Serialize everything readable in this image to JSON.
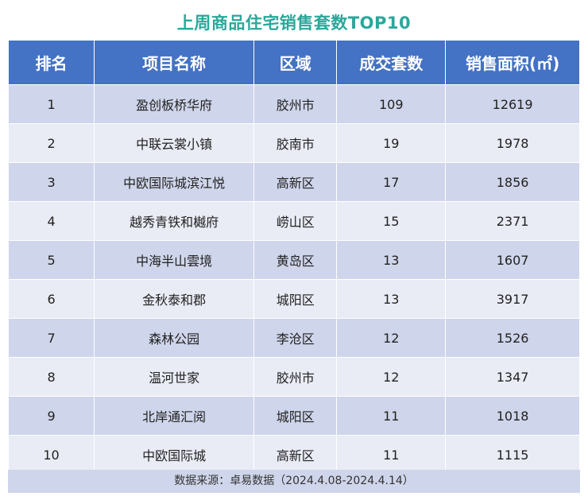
{
  "chart_data": {
    "type": "table",
    "title": "上周商品住宅销售套数TOP10",
    "columns": [
      "排名",
      "项目名称",
      "区域",
      "成交套数",
      "销售面积(㎡)"
    ],
    "rows": [
      {
        "rank": "1",
        "name": "盈创板桥华府",
        "region": "胶州市",
        "sets": 109,
        "area": 12619
      },
      {
        "rank": "2",
        "name": "中联云裳小镇",
        "region": "胶南市",
        "sets": 19,
        "area": 1978
      },
      {
        "rank": "3",
        "name": "中欧国际城滨江悦",
        "region": "高新区",
        "sets": 17,
        "area": 1856
      },
      {
        "rank": "4",
        "name": "越秀青铁和樾府",
        "region": "崂山区",
        "sets": 15,
        "area": 2371
      },
      {
        "rank": "5",
        "name": "中海半山雲境",
        "region": "黄岛区",
        "sets": 13,
        "area": 1607
      },
      {
        "rank": "6",
        "name": "金秋泰和郡",
        "region": "城阳区",
        "sets": 13,
        "area": 3917
      },
      {
        "rank": "7",
        "name": "森林公园",
        "region": "李沧区",
        "sets": 12,
        "area": 1526
      },
      {
        "rank": "8",
        "name": "温河世家",
        "region": "胶州市",
        "sets": 12,
        "area": 1347
      },
      {
        "rank": "9",
        "name": "北岸通汇阅",
        "region": "城阳区",
        "sets": 11,
        "area": 1018
      },
      {
        "rank": "10",
        "name": "中欧国际城",
        "region": "高新区",
        "sets": 11,
        "area": 1115
      }
    ],
    "source": "数据来源：卓易数据（2024.4.08-2024.4.14）",
    "colors": {
      "title": "#2aa89a",
      "header_bg": "#4472c4",
      "row_dark": "#cfd5ea",
      "row_light": "#e9ebf5"
    }
  }
}
